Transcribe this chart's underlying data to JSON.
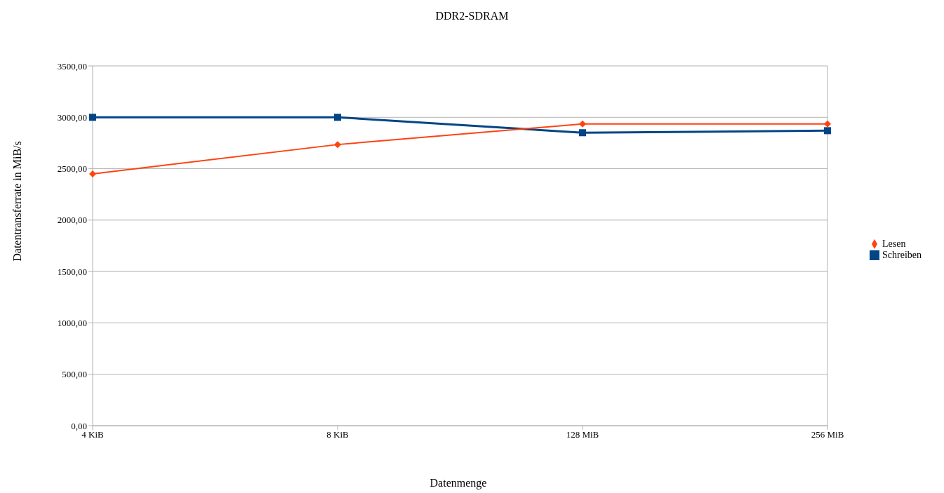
{
  "chart_data": {
    "type": "line",
    "title": "DDR2-SDRAM",
    "xlabel": "Datenmenge",
    "ylabel": "Datentransferrate in MiB/s",
    "categories": [
      "4 KiB",
      "8 KiB",
      "128 MiB",
      "256 MiB"
    ],
    "series": [
      {
        "name": "Schreiben",
        "color": "#004586",
        "marker": "square",
        "values": [
          3000,
          3000,
          2850,
          2870
        ]
      },
      {
        "name": "Lesen",
        "color": "#ff420e",
        "marker": "diamond",
        "values": [
          2450,
          2735,
          2935,
          2935
        ]
      }
    ],
    "ylim": [
      0,
      3500
    ],
    "yticks": [
      {
        "value": 0,
        "label": "0,00"
      },
      {
        "value": 500,
        "label": "500,00"
      },
      {
        "value": 1000,
        "label": "1000,00"
      },
      {
        "value": 1500,
        "label": "1500,00"
      },
      {
        "value": 2000,
        "label": "2000,00"
      },
      {
        "value": 2500,
        "label": "2500,00"
      },
      {
        "value": 3000,
        "label": "3000,00"
      },
      {
        "value": 3500,
        "label": "3500,00"
      }
    ],
    "grid": "y",
    "legend": "right",
    "line_style": "solid"
  }
}
